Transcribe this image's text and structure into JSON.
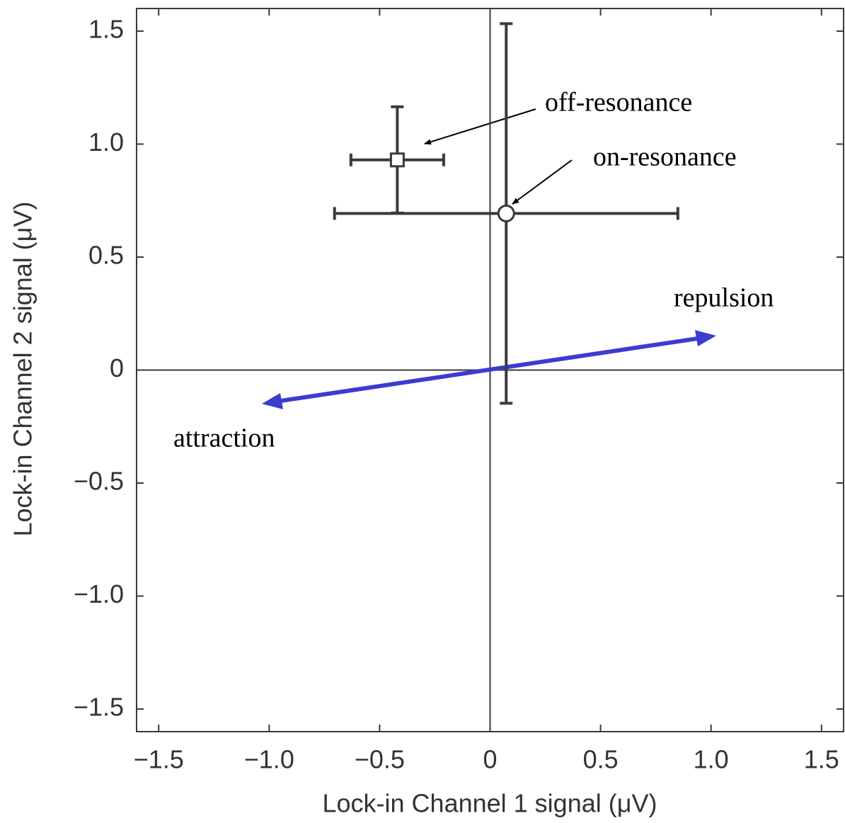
{
  "chart_data": {
    "type": "scatter",
    "x_label": "Lock-in Channel 1 signal (μV)",
    "y_label": "Lock-in Channel 2 signal (μV)",
    "xlim": [
      -1.6,
      1.6
    ],
    "ylim": [
      -1.6,
      1.6
    ],
    "xticks": [
      {
        "value": -1.5,
        "label": "−1.5"
      },
      {
        "value": -1,
        "label": "−1.0"
      },
      {
        "value": -0.5,
        "label": "−0.5"
      },
      0,
      0.5,
      {
        "value": 1,
        "label": "1.0"
      },
      1.5
    ],
    "yticks": [
      {
        "value": -1.5,
        "label": "−1.5"
      },
      {
        "value": -1,
        "label": "−1.0"
      },
      {
        "value": -0.5,
        "label": "−0.5"
      },
      0,
      0.5,
      {
        "value": 1,
        "label": "1.0"
      },
      1.5
    ],
    "series": [
      {
        "marker": "square",
        "color": "#3a3a3a",
        "x": [
          -0.42
        ],
        "y": [
          0.93
        ],
        "xerr": [
          0.21
        ],
        "yerr": [
          0.235
        ]
      },
      {
        "marker": "circle",
        "color": "#3a3a3a",
        "x": [
          0.073
        ],
        "y": [
          0.693
        ],
        "xerr": [
          0.777
        ],
        "yerr": [
          0.84
        ]
      }
    ],
    "annotations": [
      "off-resonance",
      "on-resonance",
      "repulsion",
      "attraction"
    ],
    "arrow_color": "#3c3cd2"
  }
}
